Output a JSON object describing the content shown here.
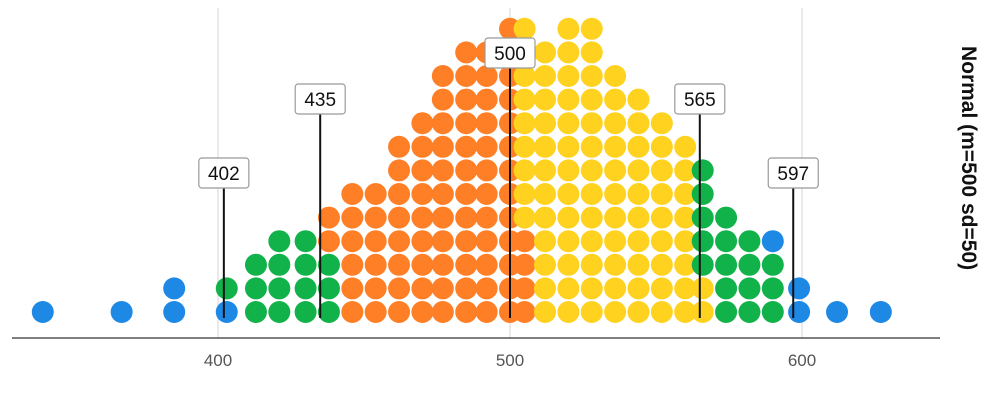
{
  "chart_data": {
    "type": "scatter",
    "subtype": "dot plot (beeswarm)",
    "title": "Normal (m=500 sd=50)",
    "xlabel": "",
    "ylabel": "",
    "xlim": [
      340,
      640
    ],
    "x_ticks": [
      400,
      500,
      600
    ],
    "grid": "vertical",
    "legend": "none",
    "colors": {
      "tail": "#1E88E5",
      "outer": "#12B24A",
      "lower_center": "#FF7F27",
      "upper_center": "#FFD21F",
      "axis": "#555555",
      "grid": "#DDDDDD"
    },
    "bins": [
      {
        "x": 340,
        "count": 1,
        "group": "tail"
      },
      {
        "x": 367,
        "count": 1,
        "group": "tail"
      },
      {
        "x": 385,
        "count": 2,
        "group": "tail"
      },
      {
        "x": 403,
        "count": 1,
        "group": "tail"
      },
      {
        "x": 403,
        "count": 1,
        "group": "outer"
      },
      {
        "x": 413,
        "count": 3,
        "group": "outer"
      },
      {
        "x": 421,
        "count": 4,
        "group": "outer"
      },
      {
        "x": 430,
        "count": 4,
        "group": "outer"
      },
      {
        "x": 438,
        "count": 3,
        "group": "outer"
      },
      {
        "x": 438,
        "count": 2,
        "group": "lower_center"
      },
      {
        "x": 446,
        "count": 6,
        "group": "lower_center"
      },
      {
        "x": 454,
        "count": 6,
        "group": "lower_center"
      },
      {
        "x": 462,
        "count": 8,
        "group": "lower_center"
      },
      {
        "x": 470,
        "count": 9,
        "group": "lower_center"
      },
      {
        "x": 477,
        "count": 11,
        "group": "lower_center"
      },
      {
        "x": 485,
        "count": 12,
        "group": "lower_center"
      },
      {
        "x": 492,
        "count": 12,
        "group": "lower_center"
      },
      {
        "x": 500,
        "count": 13,
        "group": "lower_center"
      },
      {
        "x": 505,
        "count": 4,
        "group": "lower_center"
      },
      {
        "x": 505,
        "count": 9,
        "group": "upper_center"
      },
      {
        "x": 512,
        "count": 12,
        "group": "upper_center"
      },
      {
        "x": 520,
        "count": 13,
        "group": "upper_center"
      },
      {
        "x": 528,
        "count": 13,
        "group": "upper_center"
      },
      {
        "x": 536,
        "count": 11,
        "group": "upper_center"
      },
      {
        "x": 544,
        "count": 10,
        "group": "upper_center"
      },
      {
        "x": 552,
        "count": 9,
        "group": "upper_center"
      },
      {
        "x": 560,
        "count": 8,
        "group": "upper_center"
      },
      {
        "x": 566,
        "count": 2,
        "group": "upper_center"
      },
      {
        "x": 566,
        "count": 5,
        "group": "outer"
      },
      {
        "x": 574,
        "count": 5,
        "group": "outer"
      },
      {
        "x": 582,
        "count": 4,
        "group": "outer"
      },
      {
        "x": 590,
        "count": 3,
        "group": "outer"
      },
      {
        "x": 590,
        "count": 1,
        "group": "tail"
      },
      {
        "x": 599,
        "count": 2,
        "group": "tail"
      },
      {
        "x": 612,
        "count": 1,
        "group": "tail"
      },
      {
        "x": 627,
        "count": 1,
        "group": "tail"
      }
    ],
    "annotations": [
      {
        "label": "402",
        "x": 402
      },
      {
        "label": "435",
        "x": 435
      },
      {
        "label": "500",
        "x": 500
      },
      {
        "label": "565",
        "x": 565
      },
      {
        "label": "597",
        "x": 597
      }
    ]
  }
}
